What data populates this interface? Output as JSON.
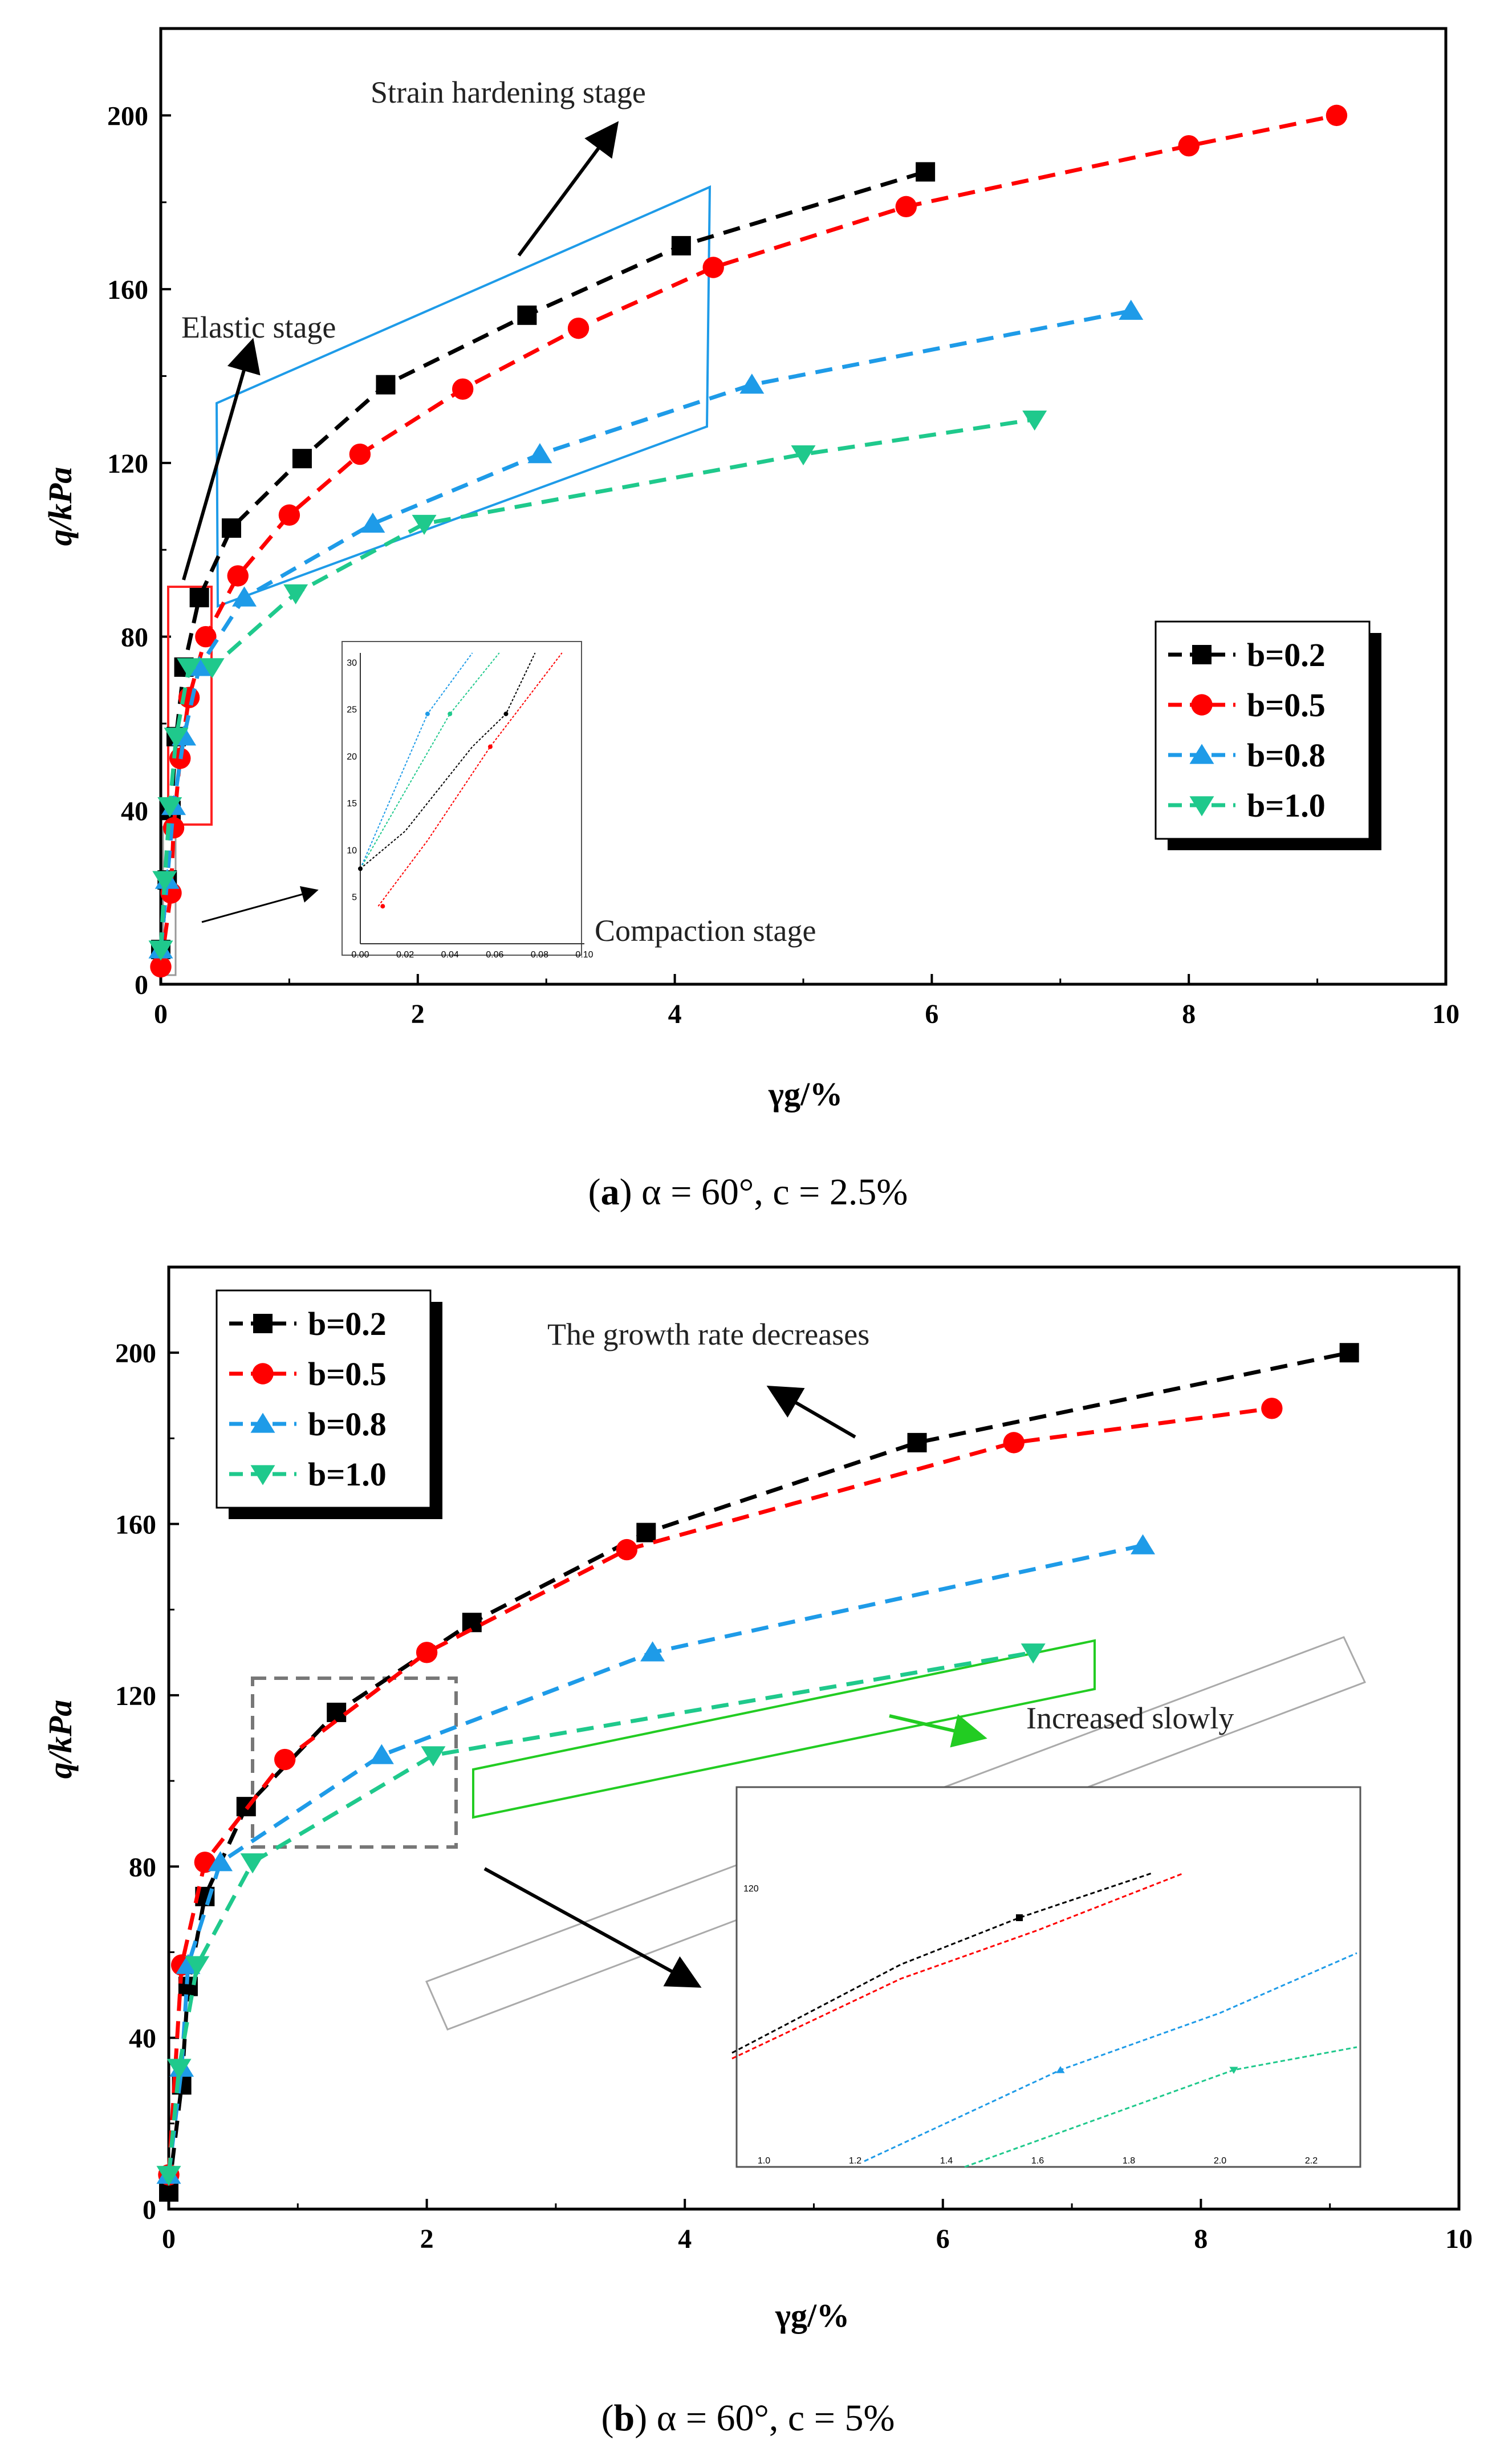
{
  "chart_data": [
    {
      "id": "a",
      "type": "line",
      "caption": {
        "label": "a",
        "text": " α = 60°, c = 2.5%"
      },
      "xlabel": "γg/%",
      "ylabel": "q/kPa",
      "xlim": [
        0,
        10
      ],
      "ylim": [
        0,
        220
      ],
      "xticks": [
        0,
        2,
        4,
        6,
        8,
        10
      ],
      "yticks": [
        0,
        40,
        80,
        120,
        160,
        200
      ],
      "legend": {
        "position": "right-middle"
      },
      "annotations": [
        "Strain hardening stage",
        "Elastic stage",
        "Compaction stage"
      ],
      "series": [
        {
          "name": "b=0.2",
          "color": "#000000",
          "marker": "square",
          "x": [
            0.0,
            0.05,
            0.08,
            0.12,
            0.18,
            0.3,
            0.55,
            1.1,
            1.75,
            2.85,
            4.05,
            5.95
          ],
          "y": [
            8,
            24,
            40,
            57,
            73,
            89,
            105,
            121,
            138,
            154,
            170,
            187
          ]
        },
        {
          "name": "b=0.5",
          "color": "#ff0000",
          "marker": "circle",
          "x": [
            0.0,
            0.08,
            0.1,
            0.15,
            0.22,
            0.35,
            0.6,
            1.0,
            1.55,
            2.35,
            3.25,
            4.3,
            5.8,
            8.0,
            9.15
          ],
          "y": [
            4,
            21,
            36,
            52,
            66,
            80,
            94,
            108,
            122,
            137,
            151,
            165,
            179,
            193,
            200
          ]
        },
        {
          "name": "b=0.8",
          "color": "#1e9be8",
          "marker": "triangle-up",
          "x": [
            0.0,
            0.05,
            0.1,
            0.18,
            0.3,
            0.65,
            1.65,
            2.95,
            4.6,
            7.55
          ],
          "y": [
            8,
            24,
            41,
            57,
            73,
            89,
            106,
            122,
            138,
            155
          ]
        },
        {
          "name": "b=1.0",
          "color": "#1fc98c",
          "marker": "triangle-down",
          "x": [
            0.0,
            0.03,
            0.07,
            0.12,
            0.22,
            0.4,
            1.05,
            2.05,
            5.0,
            6.8
          ],
          "y": [
            8,
            24,
            41,
            57,
            73,
            73,
            90,
            106,
            122,
            130
          ]
        }
      ],
      "inset": {
        "xticks": [
          "0.00",
          "0.02",
          "0.04",
          "0.06",
          "0.08",
          "0.10"
        ],
        "yticks": [
          "5",
          "10",
          "15",
          "20",
          "25",
          "30"
        ]
      }
    },
    {
      "id": "b",
      "type": "line",
      "caption": {
        "label": "b",
        "text": " α = 60°, c = 5%"
      },
      "xlabel": "γg/%",
      "ylabel": "q/kPa",
      "xlim": [
        0,
        10
      ],
      "ylim": [
        0,
        220
      ],
      "xticks": [
        0,
        2,
        4,
        6,
        8,
        10
      ],
      "yticks": [
        0,
        40,
        80,
        120,
        160,
        200
      ],
      "legend": {
        "position": "top-left"
      },
      "annotations": [
        "The growth rate decreases",
        "Increased slowly"
      ],
      "series": [
        {
          "name": "b=0.2",
          "color": "#000000",
          "marker": "square",
          "x": [
            0.0,
            0.1,
            0.15,
            0.28,
            0.6,
            1.3,
            2.35,
            3.7,
            5.8,
            9.15
          ],
          "y": [
            4,
            29,
            52,
            73,
            94,
            116,
            137,
            158,
            179,
            200
          ]
        },
        {
          "name": "b=0.5",
          "color": "#ff0000",
          "marker": "circle",
          "x": [
            0.0,
            0.1,
            0.28,
            0.9,
            2.0,
            3.55,
            6.55,
            8.55
          ],
          "y": [
            8,
            57,
            81,
            105,
            130,
            154,
            179,
            187
          ]
        },
        {
          "name": "b=0.8",
          "color": "#1e9be8",
          "marker": "triangle-up",
          "x": [
            0.0,
            0.1,
            0.15,
            0.4,
            1.65,
            3.75,
            7.55
          ],
          "y": [
            8,
            33,
            57,
            81,
            106,
            130,
            155
          ]
        },
        {
          "name": "b=1.0",
          "color": "#1fc98c",
          "marker": "triangle-down",
          "x": [
            0.0,
            0.08,
            0.22,
            0.65,
            2.05,
            6.7
          ],
          "y": [
            8,
            33,
            57,
            81,
            106,
            130
          ]
        }
      ],
      "inset": {
        "xticks": [
          "1.0",
          "1.2",
          "1.4",
          "1.6",
          "1.8",
          "2.0",
          "2.2"
        ],
        "yticks": [
          "120"
        ]
      }
    }
  ]
}
